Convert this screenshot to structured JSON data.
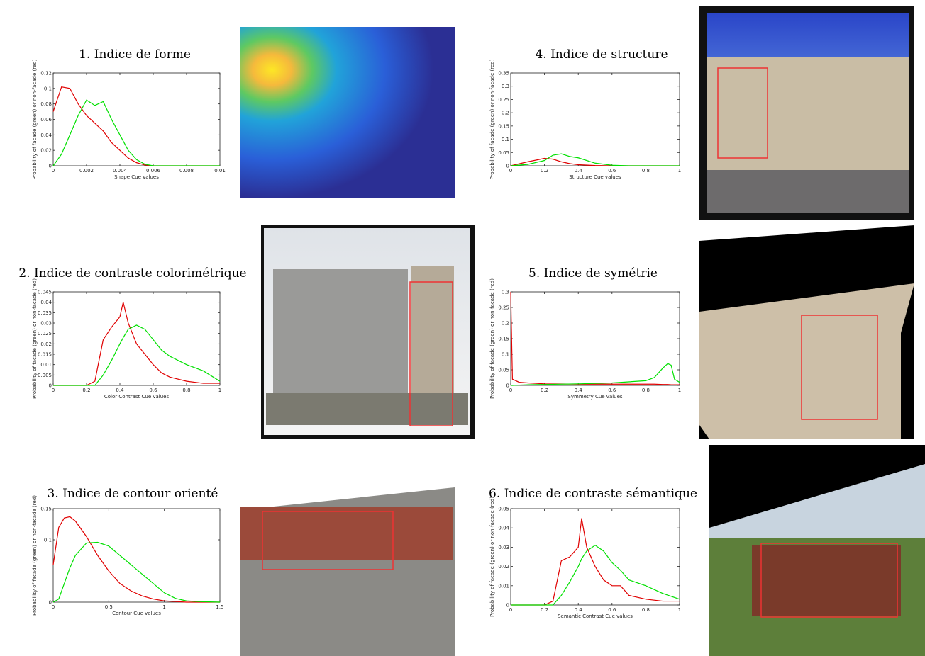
{
  "chart_data": [
    {
      "type": "line",
      "title": "1. Indice de forme",
      "x_label": "Shape Cue values",
      "y_label": "Probability of facade (green) or non-facade (red)",
      "x": [
        0,
        0.0005,
        0.001,
        0.0015,
        0.002,
        0.0025,
        0.003,
        0.0035,
        0.004,
        0.0045,
        0.005,
        0.0055,
        0.006,
        0.01
      ],
      "series": [
        {
          "color": "#e00000",
          "values": [
            0.07,
            0.102,
            0.1,
            0.08,
            0.065,
            0.055,
            0.045,
            0.03,
            0.02,
            0.01,
            0.004,
            0.001,
            0,
            0
          ]
        },
        {
          "color": "#00e000",
          "values": [
            0,
            0.015,
            0.04,
            0.065,
            0.085,
            0.078,
            0.083,
            0.06,
            0.04,
            0.02,
            0.008,
            0.002,
            0,
            0
          ]
        }
      ],
      "xlim": [
        0,
        0.01
      ],
      "xticks": [
        0,
        0.002,
        0.004,
        0.006,
        0.008,
        0.01
      ],
      "ylim": [
        0,
        0.12
      ],
      "yticks": [
        0,
        0.02,
        0.04,
        0.06,
        0.08,
        0.1,
        0.12
      ]
    },
    {
      "type": "line",
      "title": "2. Indice de contraste colorimétrique",
      "x_label": "Color Contrast Cue values",
      "y_label": "Probability of facade (green) or non-facade (red)",
      "x": [
        0,
        0.1,
        0.2,
        0.25,
        0.3,
        0.35,
        0.4,
        0.42,
        0.45,
        0.5,
        0.55,
        0.6,
        0.65,
        0.7,
        0.8,
        0.9,
        1
      ],
      "series": [
        {
          "color": "#e00000",
          "values": [
            0,
            0,
            0,
            0.002,
            0.022,
            0.028,
            0.033,
            0.04,
            0.03,
            0.02,
            0.015,
            0.01,
            0.006,
            0.004,
            0.002,
            0.001,
            0.001
          ]
        },
        {
          "color": "#00e000",
          "values": [
            0,
            0,
            0,
            0,
            0.005,
            0.012,
            0.02,
            0.023,
            0.027,
            0.029,
            0.027,
            0.022,
            0.017,
            0.014,
            0.01,
            0.007,
            0.002
          ]
        }
      ],
      "xlim": [
        0,
        1
      ],
      "xticks": [
        0,
        0.2,
        0.4,
        0.6,
        0.8,
        1
      ],
      "ylim": [
        0,
        0.045
      ],
      "yticks": [
        0,
        0.005,
        0.01,
        0.015,
        0.02,
        0.025,
        0.03,
        0.035,
        0.04,
        0.045
      ]
    },
    {
      "type": "line",
      "title": "3. Indice de contour orienté",
      "x_label": "Contour Cue values",
      "y_label": "Probability of facade (green) or non-facade (red)",
      "x": [
        0,
        0.05,
        0.1,
        0.15,
        0.2,
        0.3,
        0.4,
        0.5,
        0.6,
        0.7,
        0.8,
        0.9,
        1,
        1.1,
        1.2,
        1.3,
        1.5
      ],
      "series": [
        {
          "color": "#e00000",
          "values": [
            0.06,
            0.12,
            0.135,
            0.137,
            0.13,
            0.105,
            0.075,
            0.05,
            0.03,
            0.018,
            0.01,
            0.005,
            0.002,
            0.001,
            0,
            0,
            0
          ]
        },
        {
          "color": "#00e000",
          "values": [
            0,
            0.005,
            0.03,
            0.055,
            0.075,
            0.095,
            0.096,
            0.09,
            0.075,
            0.06,
            0.045,
            0.03,
            0.015,
            0.006,
            0.002,
            0.001,
            0
          ]
        }
      ],
      "xlim": [
        0,
        1.5
      ],
      "xticks": [
        0,
        0.5,
        1,
        1.5
      ],
      "ylim": [
        0,
        0.15
      ],
      "yticks": [
        0,
        0.1,
        0.15
      ]
    },
    {
      "type": "line",
      "title": "4. Indice de structure",
      "x_label": "Structure Cue values",
      "y_label": "Probability of facade (green) or non-facade (red)",
      "x": [
        0,
        0.1,
        0.2,
        0.25,
        0.3,
        0.35,
        0.4,
        0.5,
        0.6,
        0.7,
        1
      ],
      "series": [
        {
          "color": "#e00000",
          "values": [
            0,
            0.015,
            0.028,
            0.025,
            0.015,
            0.008,
            0.004,
            0.001,
            0,
            0,
            0
          ]
        },
        {
          "color": "#00e000",
          "values": [
            0,
            0.005,
            0.02,
            0.04,
            0.045,
            0.035,
            0.03,
            0.01,
            0.002,
            0,
            0
          ]
        }
      ],
      "xlim": [
        0,
        1
      ],
      "xticks": [
        0,
        0.2,
        0.4,
        0.6,
        0.8,
        1
      ],
      "ylim": [
        0,
        0.35
      ],
      "yticks": [
        0,
        0.05,
        0.1,
        0.15,
        0.2,
        0.25,
        0.3,
        0.35
      ]
    },
    {
      "type": "line",
      "title": "5. Indice de symétrie",
      "x_label": "Symmetry Cue values",
      "y_label": "Probability of facade (green) or non-facade (red)",
      "x": [
        0,
        0.01,
        0.05,
        0.1,
        0.2,
        0.4,
        0.6,
        0.8,
        0.85,
        0.9,
        0.93,
        0.95,
        0.97,
        1
      ],
      "series": [
        {
          "color": "#e00000",
          "values": [
            0.3,
            0.02,
            0.01,
            0.008,
            0.005,
            0.004,
            0.004,
            0.004,
            0.004,
            0.003,
            0.003,
            0.002,
            0.002,
            0.002
          ]
        },
        {
          "color": "#00e000",
          "values": [
            0,
            0,
            0.001,
            0.002,
            0.003,
            0.005,
            0.008,
            0.015,
            0.025,
            0.055,
            0.07,
            0.065,
            0.02,
            0.01
          ]
        }
      ],
      "xlim": [
        0,
        1
      ],
      "xticks": [
        0,
        0.2,
        0.4,
        0.6,
        0.8,
        1
      ],
      "ylim": [
        0,
        0.3
      ],
      "yticks": [
        0,
        0.05,
        0.1,
        0.15,
        0.2,
        0.25,
        0.3
      ]
    },
    {
      "type": "line",
      "title": "6. Indice de contraste sémantique",
      "x_label": "Semantic Contrast Cue values",
      "y_label": "Probability of facade (green) or non-facade (red)",
      "x": [
        0,
        0.1,
        0.2,
        0.25,
        0.3,
        0.35,
        0.4,
        0.42,
        0.45,
        0.5,
        0.55,
        0.6,
        0.65,
        0.7,
        0.8,
        0.9,
        1
      ],
      "series": [
        {
          "color": "#e00000",
          "values": [
            0,
            0,
            0,
            0.002,
            0.023,
            0.025,
            0.03,
            0.045,
            0.03,
            0.02,
            0.013,
            0.01,
            0.01,
            0.005,
            0.003,
            0.002,
            0.002
          ]
        },
        {
          "color": "#00e000",
          "values": [
            0,
            0,
            0,
            0,
            0.005,
            0.012,
            0.02,
            0.024,
            0.028,
            0.031,
            0.028,
            0.022,
            0.018,
            0.013,
            0.01,
            0.006,
            0.003
          ]
        }
      ],
      "xlim": [
        0,
        1
      ],
      "xticks": [
        0,
        0.2,
        0.4,
        0.6,
        0.8,
        1
      ],
      "ylim": [
        0,
        0.05
      ],
      "yticks": [
        0,
        0.01,
        0.02,
        0.03,
        0.04,
        0.05
      ]
    }
  ]
}
